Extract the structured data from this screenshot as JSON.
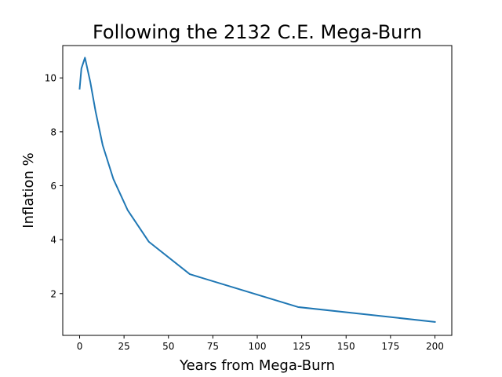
{
  "chart_data": {
    "type": "line",
    "title": "Following the 2132 C.E. Mega-Burn",
    "xlabel": "Years from Mega-Burn",
    "ylabel": "Inflation %",
    "xlim": [
      -9.5,
      209.5
    ],
    "ylim": [
      0.45,
      11.2
    ],
    "xticks": [
      0,
      25,
      50,
      75,
      100,
      125,
      150,
      175,
      200
    ],
    "yticks": [
      2,
      4,
      6,
      8,
      10
    ],
    "grid": false,
    "legend": "none",
    "series": [
      {
        "color": "#1f77b4",
        "x": [
          0,
          1,
          3,
          6,
          9,
          13,
          19,
          27,
          39,
          62,
          123,
          200
        ],
        "y": [
          9.6,
          10.35,
          10.75,
          9.85,
          8.75,
          7.5,
          6.25,
          5.1,
          3.92,
          2.72,
          1.5,
          0.95
        ]
      }
    ]
  }
}
